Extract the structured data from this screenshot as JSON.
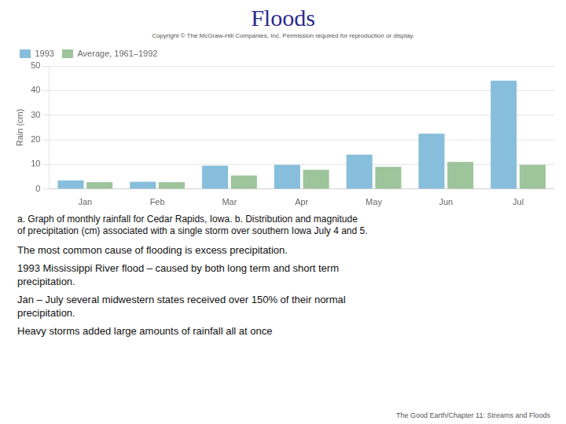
{
  "chart_data": {
    "type": "bar",
    "title": "Floods",
    "subtitle": "Copyright © The McGraw-Hill Companies, Inc. Permission required for reproduction or display.",
    "categories": [
      "Jan",
      "Feb",
      "Mar",
      "Apr",
      "May",
      "Jun",
      "Jul"
    ],
    "series": [
      {
        "name": "1993",
        "color": "#87BEDC",
        "values": [
          3.5,
          3.0,
          9.5,
          9.8,
          14.0,
          22.5,
          44.0
        ]
      },
      {
        "name": "Average, 1961–1992",
        "color": "#9DC49A",
        "values": [
          2.8,
          2.8,
          5.5,
          7.8,
          9.0,
          11.0,
          9.8
        ]
      }
    ],
    "ylabel": "Rain (cm)",
    "ylim": [
      0,
      50
    ],
    "yticks": [
      0,
      10,
      20,
      30,
      40,
      50
    ],
    "grid": true,
    "legend": "upper left",
    "annotations": [
      "a. Graph of monthly rainfall for Cedar Rapids, Iowa.  b. Distribution and magnitude\nof precipitation (cm) associated with a single storm over southern Iowa July 4 and 5.",
      "The most common cause of flooding is excess precipitation.",
      "1993 Mississippi River flood – caused by both long term and short term\nprecipitation.",
      "Jan – July several midwestern states received over 150% of their normal\nprecipitation.",
      "Heavy storms added large amounts of rainfall all at once"
    ],
    "footer": "The Good Earth/Chapter 11: Streams and Floods"
  }
}
